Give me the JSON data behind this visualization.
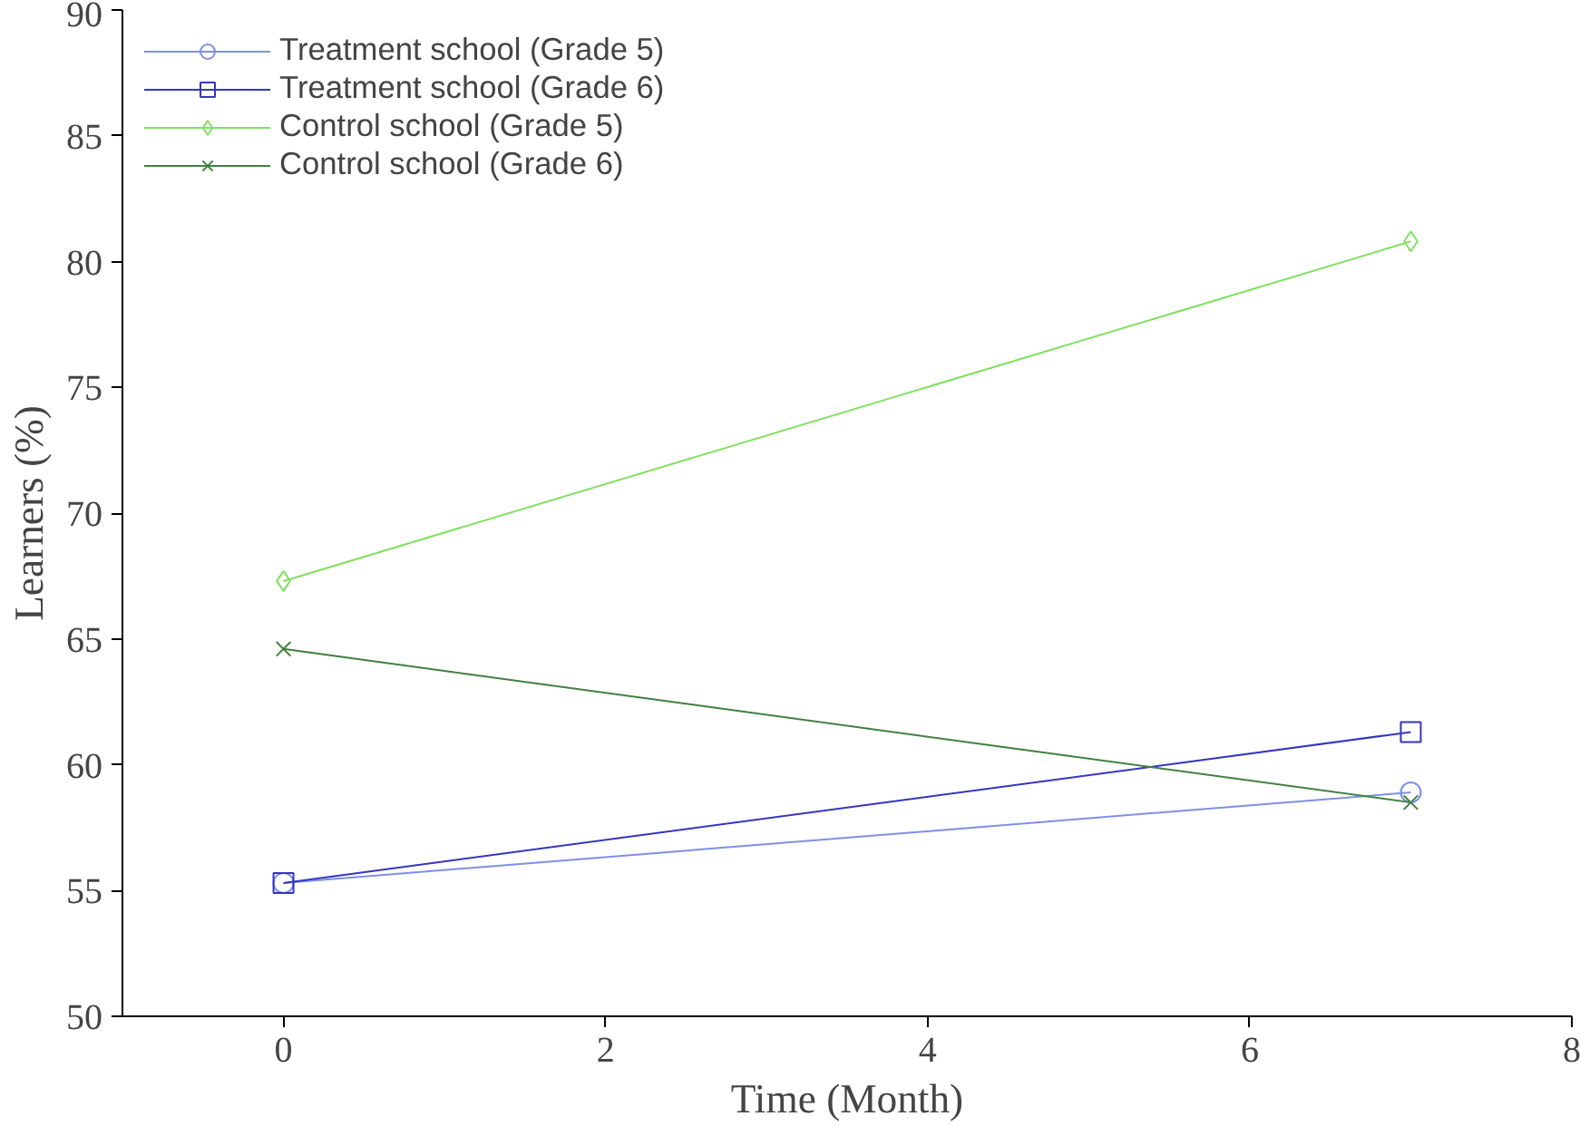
{
  "chart_data": {
    "type": "line",
    "xlabel": "Time (Month)",
    "ylabel": "Learners (%)",
    "x": [
      0,
      7
    ],
    "series": [
      {
        "name": "Treatment school (Grade 5)",
        "color": "#7f8fe6",
        "marker": "circle",
        "values": [
          55.3,
          58.9
        ]
      },
      {
        "name": "Treatment school (Grade 6)",
        "color": "#3535c0",
        "marker": "square",
        "values": [
          55.3,
          61.3
        ]
      },
      {
        "name": "Control school (Grade 5)",
        "color": "#80e060",
        "marker": "diamond",
        "values": [
          67.3,
          80.8
        ]
      },
      {
        "name": "Control school (Grade 6)",
        "color": "#408040",
        "marker": "cross",
        "values": [
          64.6,
          58.5
        ]
      }
    ],
    "xlim": [
      -1,
      8
    ],
    "xticks": [
      0,
      2,
      4,
      6,
      8
    ],
    "ylim": [
      50,
      90
    ],
    "yticks": [
      50,
      55,
      60,
      65,
      70,
      75,
      80,
      85,
      90
    ],
    "grid": false,
    "legend": "top left"
  }
}
